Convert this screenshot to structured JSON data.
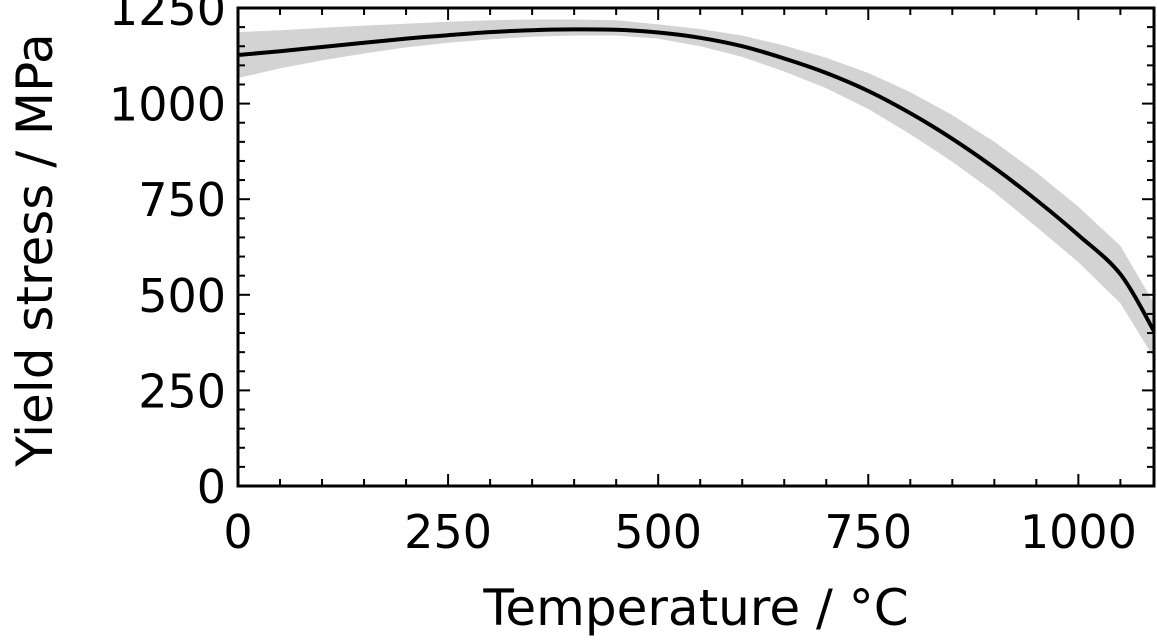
{
  "chart_data": {
    "type": "line",
    "title": "",
    "xlabel": "Temperature / °C",
    "ylabel": "Yield stress / MPa",
    "xlim": [
      0,
      1090
    ],
    "ylim": [
      0,
      1250
    ],
    "xticks": [
      0,
      250,
      500,
      750,
      1000
    ],
    "yticks": [
      0,
      250,
      500,
      750,
      1000,
      1250
    ],
    "xtick_labels": [
      "0",
      "250",
      "500",
      "750",
      "1000"
    ],
    "ytick_labels": [
      "0",
      "250",
      "500",
      "750",
      "1000",
      "1250"
    ],
    "grid": false,
    "legend": "none",
    "colors": {
      "line": "#000000",
      "band": "#d3d3d3"
    },
    "series": [
      {
        "x": [
          0,
          50,
          100,
          150,
          200,
          250,
          300,
          350,
          400,
          450,
          500,
          550,
          600,
          650,
          700,
          750,
          800,
          850,
          900,
          950,
          1000,
          1050,
          1090
        ],
        "values": [
          1127,
          1137,
          1148,
          1159,
          1170,
          1179,
          1187,
          1192,
          1194,
          1193,
          1186,
          1172,
          1150,
          1118,
          1080,
          1033,
          975,
          908,
          832,
          748,
          656,
          554,
          405
        ],
        "lower": [
          1067,
          1092,
          1113,
          1131,
          1147,
          1159,
          1168,
          1175,
          1178,
          1178,
          1170,
          1150,
          1122,
          1084,
          1040,
          986,
          920,
          848,
          768,
          678,
          585,
          478,
          335
        ],
        "upper": [
          1187,
          1192,
          1198,
          1204,
          1209,
          1214,
          1218,
          1220,
          1220,
          1218,
          1207,
          1195,
          1178,
          1152,
          1120,
          1080,
          1030,
          970,
          900,
          820,
          730,
          628,
          478
        ]
      }
    ]
  }
}
